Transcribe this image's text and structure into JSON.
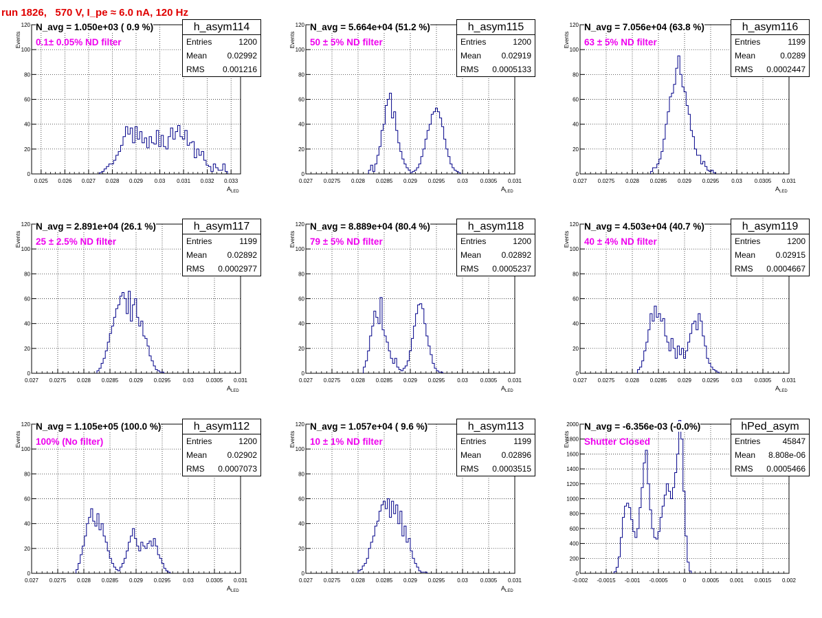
{
  "run_title": "run 1826,   570 V, I_pe ≈ 6.0 nA, 120 Hz",
  "colors": {
    "hist_line": "#000088",
    "filter_text": "#ee00ee",
    "title_text": "#e00000"
  },
  "panels": [
    {
      "stat_name": "h_asym114",
      "navg": "N_avg = 1.050e+03 ( 0.9 %)",
      "filter": "0.1± 0.05% ND filter",
      "entries_label": "Entries",
      "entries": "1200",
      "mean_label": "Mean",
      "mean": "0.02992",
      "rms_label": "RMS",
      "rms": "0.001216",
      "ylabel": "Events",
      "xlabel": "A",
      "xlabel_sub": "LED"
    },
    {
      "stat_name": "h_asym115",
      "navg": "N_avg = 5.664e+04 (51.2 %)",
      "filter": "50 ± 5% ND filter",
      "entries_label": "Entries",
      "entries": "1200",
      "mean_label": "Mean",
      "mean": "0.02919",
      "rms_label": "RMS",
      "rms": "0.0005133",
      "ylabel": "Events",
      "xlabel": "A",
      "xlabel_sub": "LED"
    },
    {
      "stat_name": "h_asym116",
      "navg": "N_avg = 7.056e+04 (63.8 %)",
      "filter": "63 ± 5% ND filter",
      "entries_label": "Entries",
      "entries": "1199",
      "mean_label": "Mean",
      "mean": "0.0289",
      "rms_label": "RMS",
      "rms": "0.0002447",
      "ylabel": "Events",
      "xlabel": "A",
      "xlabel_sub": "LED"
    },
    {
      "stat_name": "h_asym117",
      "navg": "N_avg = 2.891e+04 (26.1 %)",
      "filter": "25 ± 2.5% ND filter",
      "entries_label": "Entries",
      "entries": "1199",
      "mean_label": "Mean",
      "mean": "0.02892",
      "rms_label": "RMS",
      "rms": "0.0002977",
      "ylabel": "Events",
      "xlabel": "A",
      "xlabel_sub": "LED"
    },
    {
      "stat_name": "h_asym118",
      "navg": "N_avg = 8.889e+04 (80.4 %)",
      "filter": "79 ± 5% ND filter",
      "entries_label": "Entries",
      "entries": "1200",
      "mean_label": "Mean",
      "mean": "0.02892",
      "rms_label": "RMS",
      "rms": "0.0005237",
      "ylabel": "Events",
      "xlabel": "A",
      "xlabel_sub": "LED"
    },
    {
      "stat_name": "h_asym119",
      "navg": "N_avg = 4.503e+04 (40.7 %)",
      "filter": "40 ± 4% ND filter",
      "entries_label": "Entries",
      "entries": "1200",
      "mean_label": "Mean",
      "mean": "0.02915",
      "rms_label": "RMS",
      "rms": "0.0004667",
      "ylabel": "Events",
      "xlabel": "A",
      "xlabel_sub": "LED"
    },
    {
      "stat_name": "h_asym112",
      "navg": "N_avg = 1.105e+05 (100.0 %)",
      "filter": "100% (No filter)",
      "entries_label": "Entries",
      "entries": "1200",
      "mean_label": "Mean",
      "mean": "0.02902",
      "rms_label": "RMS",
      "rms": "0.0007073",
      "ylabel": "Events",
      "xlabel": "A",
      "xlabel_sub": "LED"
    },
    {
      "stat_name": "h_asym113",
      "navg": "N_avg = 1.057e+04 ( 9.6 %)",
      "filter": "10 ± 1% ND filter",
      "entries_label": "Entries",
      "entries": "1199",
      "mean_label": "Mean",
      "mean": "0.02896",
      "rms_label": "RMS",
      "rms": "0.0003515",
      "ylabel": "Events",
      "xlabel": "A",
      "xlabel_sub": "LED"
    },
    {
      "stat_name": "hPed_asym",
      "navg": "N_avg = -6.356e-03 (-0.0%)",
      "filter": "Shutter Closed",
      "entries_label": "Entries",
      "entries": "45847",
      "mean_label": "Mean",
      "mean": "8.808e-06",
      "rms_label": "RMS",
      "rms": "0.0005466",
      "ylabel": "Events",
      "xlabel": "",
      "xlabel_sub": ""
    }
  ],
  "chart_data": [
    {
      "type": "bar",
      "title": "h_asym114",
      "ylabel": "Events",
      "xlabel": "A_LED",
      "xlim": [
        0.0246,
        0.0334
      ],
      "ylim": [
        0,
        120
      ],
      "xticks": [
        "0.025",
        "0.026",
        "0.027",
        "0.028",
        "0.029",
        "0.03",
        "0.031",
        "0.032",
        "0.033"
      ],
      "yticks": [
        "0",
        "20",
        "40",
        "60",
        "80",
        "100",
        "120"
      ],
      "bin_start": 0.02745,
      "bin_width": 0.0001,
      "values": [
        1,
        2,
        4,
        6,
        8,
        8,
        11,
        15,
        18,
        23,
        30,
        38,
        32,
        37,
        25,
        38,
        28,
        34,
        25,
        29,
        21,
        30,
        25,
        24,
        35,
        22,
        31,
        22,
        20,
        30,
        37,
        28,
        34,
        39,
        30,
        28,
        35,
        23,
        25,
        26,
        13,
        20,
        15,
        18,
        11,
        7,
        6,
        2,
        8,
        5,
        3,
        3,
        8,
        2
      ]
    },
    {
      "type": "bar",
      "title": "h_asym115",
      "ylabel": "Events",
      "xlabel": "A_LED",
      "xlim": [
        0.027,
        0.031
      ],
      "ylim": [
        0,
        120
      ],
      "xticks": [
        "0.027",
        "0.0275",
        "0.028",
        "0.0285",
        "0.029",
        "0.0295",
        "0.03",
        "0.0305",
        "0.031"
      ],
      "yticks": [
        "0",
        "20",
        "40",
        "60",
        "80",
        "100",
        "120"
      ],
      "bin_start": 0.0282,
      "bin_width": 4e-05,
      "values": [
        3,
        7,
        2,
        8,
        15,
        22,
        35,
        40,
        55,
        60,
        65,
        45,
        50,
        35,
        25,
        18,
        12,
        8,
        5,
        3,
        1,
        2,
        3,
        5,
        8,
        14,
        20,
        28,
        35,
        40,
        48,
        50,
        53,
        50,
        45,
        38,
        28,
        20,
        14,
        8,
        5,
        3,
        2,
        1
      ]
    },
    {
      "type": "bar",
      "title": "h_asym116",
      "ylabel": "Events",
      "xlabel": "A_LED",
      "xlim": [
        0.027,
        0.031
      ],
      "ylim": [
        0,
        120
      ],
      "xticks": [
        "0.027",
        "0.0275",
        "0.028",
        "0.0285",
        "0.029",
        "0.0295",
        "0.03",
        "0.0305",
        "0.031"
      ],
      "yticks": [
        "0",
        "20",
        "40",
        "60",
        "80",
        "100",
        "120"
      ],
      "bin_start": 0.02835,
      "bin_width": 4e-05,
      "values": [
        2,
        5,
        5,
        8,
        12,
        18,
        28,
        40,
        50,
        62,
        65,
        72,
        85,
        95,
        80,
        70,
        66,
        55,
        48,
        35,
        30,
        20,
        15,
        15,
        8,
        10,
        6,
        3,
        2,
        3,
        1
      ]
    },
    {
      "type": "bar",
      "title": "h_asym117",
      "ylabel": "Events",
      "xlabel": "A_LED",
      "xlim": [
        0.027,
        0.031
      ],
      "ylim": [
        0,
        120
      ],
      "xticks": [
        "0.027",
        "0.0275",
        "0.028",
        "0.0285",
        "0.029",
        "0.0295",
        "0.03",
        "0.0305",
        "0.031"
      ],
      "yticks": [
        "0",
        "20",
        "40",
        "60",
        "80",
        "100",
        "120"
      ],
      "bin_start": 0.02825,
      "bin_width": 4e-05,
      "values": [
        2,
        4,
        8,
        12,
        18,
        25,
        32,
        38,
        45,
        52,
        55,
        62,
        65,
        60,
        48,
        66,
        42,
        55,
        60,
        45,
        38,
        42,
        30,
        28,
        22,
        14,
        10,
        6,
        3,
        2,
        1,
        1
      ]
    },
    {
      "type": "bar",
      "title": "h_asym118",
      "ylabel": "Events",
      "xlabel": "A_LED",
      "xlim": [
        0.027,
        0.031
      ],
      "ylim": [
        0,
        120
      ],
      "xticks": [
        "0.027",
        "0.0275",
        "0.028",
        "0.0285",
        "0.029",
        "0.0295",
        "0.03",
        "0.0305",
        "0.031"
      ],
      "yticks": [
        "0",
        "20",
        "40",
        "60",
        "80",
        "100",
        "120"
      ],
      "bin_start": 0.0281,
      "bin_width": 4e-05,
      "values": [
        5,
        10,
        18,
        30,
        38,
        50,
        45,
        40,
        61,
        35,
        30,
        25,
        18,
        12,
        8,
        12,
        5,
        3,
        2,
        4,
        6,
        10,
        18,
        28,
        38,
        48,
        55,
        56,
        52,
        40,
        30,
        22,
        15,
        8,
        4,
        2,
        1,
        1
      ]
    },
    {
      "type": "bar",
      "title": "h_asym119",
      "ylabel": "Events",
      "xlabel": "A_LED",
      "xlim": [
        0.027,
        0.031
      ],
      "ylim": [
        0,
        120
      ],
      "xticks": [
        "0.027",
        "0.0275",
        "0.028",
        "0.0285",
        "0.029",
        "0.0295",
        "0.03",
        "0.0305",
        "0.031"
      ],
      "yticks": [
        "0",
        "20",
        "40",
        "60",
        "80",
        "100",
        "120"
      ],
      "bin_start": 0.0281,
      "bin_width": 4e-05,
      "values": [
        3,
        5,
        10,
        18,
        25,
        35,
        48,
        42,
        54,
        45,
        48,
        42,
        44,
        30,
        25,
        18,
        28,
        20,
        12,
        22,
        15,
        20,
        12,
        18,
        25,
        32,
        40,
        42,
        35,
        48,
        42,
        30,
        22,
        12,
        8,
        5,
        3,
        2,
        1
      ]
    },
    {
      "type": "bar",
      "title": "h_asym112",
      "ylabel": "Events",
      "xlabel": "A_LED",
      "xlim": [
        0.027,
        0.031
      ],
      "ylim": [
        0,
        120
      ],
      "xticks": [
        "0.027",
        "0.0275",
        "0.028",
        "0.0285",
        "0.029",
        "0.0295",
        "0.03",
        "0.0305",
        "0.031"
      ],
      "yticks": [
        "0",
        "20",
        "40",
        "60",
        "80",
        "100",
        "120"
      ],
      "bin_start": 0.02785,
      "bin_width": 4e-05,
      "values": [
        3,
        8,
        15,
        22,
        30,
        40,
        45,
        52,
        42,
        38,
        48,
        35,
        40,
        30,
        25,
        18,
        12,
        8,
        5,
        3,
        2,
        5,
        8,
        12,
        18,
        25,
        30,
        36,
        28,
        22,
        18,
        25,
        22,
        20,
        24,
        26,
        22,
        28,
        22,
        15,
        12,
        8,
        4,
        2,
        1
      ]
    },
    {
      "type": "bar",
      "title": "h_asym113",
      "ylabel": "Events",
      "xlabel": "A_LED",
      "xlim": [
        0.027,
        0.031
      ],
      "ylim": [
        0,
        120
      ],
      "xticks": [
        "0.027",
        "0.0275",
        "0.028",
        "0.0285",
        "0.029",
        "0.0295",
        "0.03",
        "0.0305",
        "0.031"
      ],
      "yticks": [
        "0",
        "20",
        "40",
        "60",
        "80",
        "100",
        "120"
      ],
      "bin_start": 0.028,
      "bin_width": 4e-05,
      "values": [
        2,
        3,
        6,
        8,
        12,
        20,
        25,
        30,
        38,
        42,
        50,
        55,
        58,
        52,
        60,
        45,
        58,
        48,
        55,
        40,
        50,
        30,
        38,
        25,
        28,
        18,
        12,
        8,
        5,
        2,
        1,
        1,
        1
      ]
    },
    {
      "type": "bar",
      "title": "hPed_asym",
      "ylabel": "Events",
      "xlabel": "",
      "xlim": [
        -0.002,
        0.002
      ],
      "ylim": [
        0,
        2100
      ],
      "xticks": [
        "-0.002",
        "-0.0015",
        "-0.001",
        "-0.0005",
        "0",
        "0.0005",
        "0.001",
        "0.0015",
        "0.002"
      ],
      "yticks": [
        "0",
        "200",
        "400",
        "600",
        "800",
        "1000",
        "1200",
        "1400",
        "1600",
        "1800",
        "2000"
      ],
      "bin_start": -0.00135,
      "bin_width": 4e-05,
      "values": [
        20,
        80,
        220,
        480,
        750,
        900,
        940,
        880,
        720,
        560,
        480,
        600,
        880,
        1150,
        1480,
        1650,
        1200,
        850,
        600,
        480,
        460,
        560,
        750,
        900,
        1050,
        1200,
        1100,
        1000,
        1150,
        1350,
        1600,
        2050,
        1800,
        1100,
        500,
        150,
        30
      ]
    }
  ]
}
